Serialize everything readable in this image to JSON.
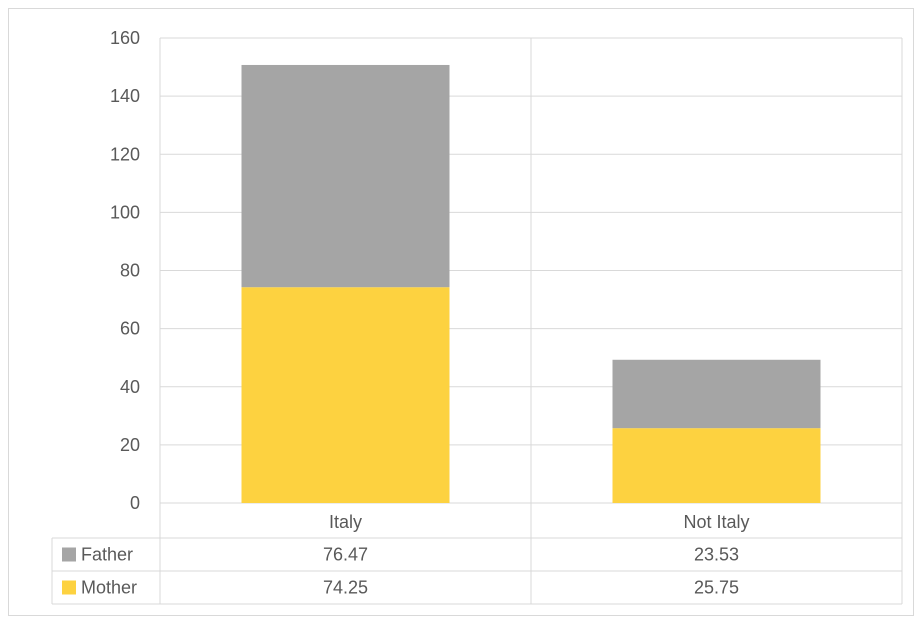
{
  "chart_data": {
    "type": "bar",
    "stacked": true,
    "title": "",
    "xlabel": "",
    "ylabel": "",
    "categories": [
      "Italy",
      "Not Italy"
    ],
    "series": [
      {
        "name": "Mother",
        "values": [
          74.25,
          25.75
        ],
        "value_labels": [
          "74.25",
          "25.75"
        ],
        "color": "#fdd240"
      },
      {
        "name": "Father",
        "values": [
          76.47,
          23.53
        ],
        "value_labels": [
          "76.47",
          "23.53"
        ],
        "color": "#a5a5a5"
      }
    ],
    "ylim": [
      0,
      160
    ],
    "yticks": [
      "0",
      "20",
      "40",
      "60",
      "80",
      "100",
      "120",
      "140",
      "160"
    ],
    "grid": true,
    "data_table": true
  },
  "colors": {
    "gridline": "#d9d9d9",
    "text": "#595959"
  }
}
